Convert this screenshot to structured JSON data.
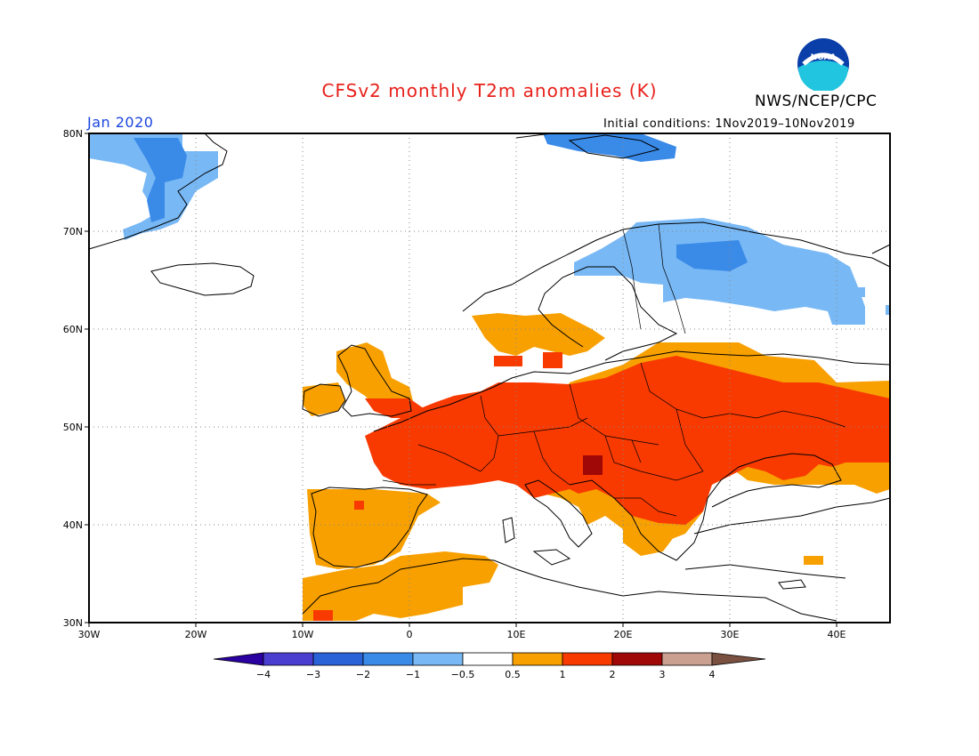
{
  "title": "CFSv2 monthly T2m anomalies (K)",
  "organization": "NWS/NCEP/CPC",
  "logo_text": "NOAA",
  "month_label": "Jan 2020",
  "initial_conditions": "Initial conditions: 1Nov2019–10Nov2019",
  "lat_labels": [
    "30N",
    "40N",
    "50N",
    "60N",
    "70N",
    "80N"
  ],
  "lon_labels": [
    "30W",
    "20W",
    "10W",
    "0",
    "10E",
    "20E",
    "30E",
    "40E"
  ],
  "legend": {
    "colors": [
      "#2a00a0",
      "#4a3ed0",
      "#2a62d8",
      "#3a8ae8",
      "#78b8f5",
      "#ffffff",
      "#f8a000",
      "#f83a00",
      "#a00808",
      "#caa090",
      "#7a5040"
    ],
    "tick_labels": [
      "−4",
      "−3",
      "−2",
      "−1",
      "−0.5",
      "0.5",
      "1",
      "2",
      "3",
      "4"
    ]
  },
  "colors": {
    "ocean": "#ffffff",
    "land_outline": "#000000",
    "title": "#e8201a",
    "month": "#1a45e0"
  }
}
